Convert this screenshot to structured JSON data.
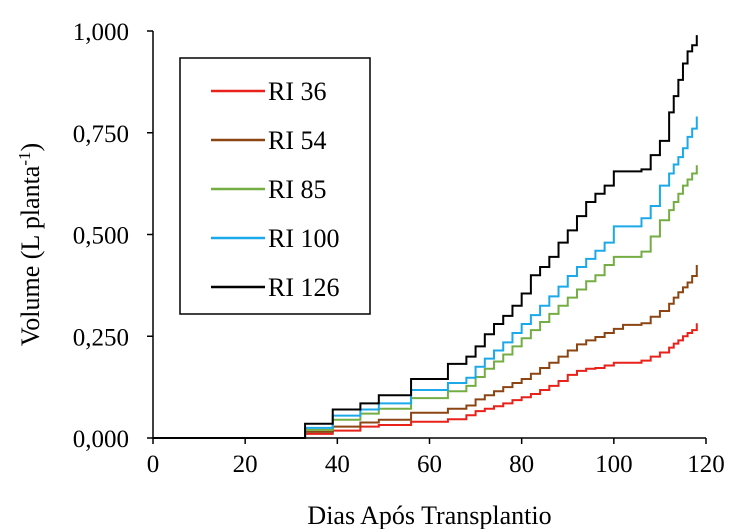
{
  "chart_data": {
    "type": "line",
    "step": true,
    "title": "",
    "xlabel": "Dias Após Transplantio",
    "ylabel": {
      "main": "Volume (L planta",
      "superscript": "-1",
      "close": ")"
    },
    "xlim": [
      0,
      120
    ],
    "ylim": [
      0,
      1.0
    ],
    "xticks": [
      0,
      20,
      40,
      60,
      80,
      100,
      120
    ],
    "xtick_labels": [
      "0",
      "20",
      "40",
      "60",
      "80",
      "100",
      "120"
    ],
    "yticks": [
      0,
      0.25,
      0.5,
      0.75,
      1.0
    ],
    "ytick_labels": [
      "0,000",
      "0,250",
      "0,500",
      "0,750",
      "1,000"
    ],
    "grid": false,
    "legend_position": "top-left",
    "series": [
      {
        "name": "RI 36",
        "color": "#e8211a",
        "points": [
          [
            0,
            0
          ],
          [
            33,
            0
          ],
          [
            33,
            0.01
          ],
          [
            39,
            0.01
          ],
          [
            39,
            0.018
          ],
          [
            45,
            0.018
          ],
          [
            45,
            0.028
          ],
          [
            49,
            0.028
          ],
          [
            49,
            0.032
          ],
          [
            56,
            0.032
          ],
          [
            56,
            0.04
          ],
          [
            60,
            0.04
          ],
          [
            64,
            0.046
          ],
          [
            68,
            0.056
          ],
          [
            70,
            0.066
          ],
          [
            72,
            0.072
          ],
          [
            74,
            0.078
          ],
          [
            76,
            0.085
          ],
          [
            78,
            0.093
          ],
          [
            80,
            0.1
          ],
          [
            82,
            0.108
          ],
          [
            84,
            0.118
          ],
          [
            86,
            0.128
          ],
          [
            88,
            0.14
          ],
          [
            90,
            0.155
          ],
          [
            92,
            0.165
          ],
          [
            94,
            0.17
          ],
          [
            96,
            0.172
          ],
          [
            98,
            0.178
          ],
          [
            100,
            0.185
          ],
          [
            102,
            0.185
          ],
          [
            106,
            0.19
          ],
          [
            108,
            0.2
          ],
          [
            110,
            0.21
          ],
          [
            112,
            0.222
          ],
          [
            113,
            0.232
          ],
          [
            114,
            0.24
          ],
          [
            115,
            0.25
          ],
          [
            116,
            0.258
          ],
          [
            117,
            0.265
          ],
          [
            118,
            0.282
          ]
        ]
      },
      {
        "name": "RI 54",
        "color": "#8b4513",
        "points": [
          [
            0,
            0
          ],
          [
            33,
            0
          ],
          [
            33,
            0.015
          ],
          [
            39,
            0.015
          ],
          [
            39,
            0.028
          ],
          [
            45,
            0.028
          ],
          [
            45,
            0.038
          ],
          [
            49,
            0.038
          ],
          [
            49,
            0.045
          ],
          [
            56,
            0.045
          ],
          [
            56,
            0.062
          ],
          [
            60,
            0.062
          ],
          [
            64,
            0.072
          ],
          [
            68,
            0.08
          ],
          [
            70,
            0.095
          ],
          [
            72,
            0.105
          ],
          [
            74,
            0.115
          ],
          [
            76,
            0.125
          ],
          [
            78,
            0.135
          ],
          [
            80,
            0.145
          ],
          [
            82,
            0.158
          ],
          [
            84,
            0.172
          ],
          [
            86,
            0.185
          ],
          [
            88,
            0.2
          ],
          [
            90,
            0.215
          ],
          [
            92,
            0.23
          ],
          [
            94,
            0.24
          ],
          [
            96,
            0.248
          ],
          [
            98,
            0.258
          ],
          [
            100,
            0.268
          ],
          [
            102,
            0.278
          ],
          [
            106,
            0.282
          ],
          [
            108,
            0.298
          ],
          [
            110,
            0.312
          ],
          [
            112,
            0.33
          ],
          [
            113,
            0.345
          ],
          [
            114,
            0.358
          ],
          [
            115,
            0.37
          ],
          [
            116,
            0.382
          ],
          [
            117,
            0.398
          ],
          [
            118,
            0.425
          ]
        ]
      },
      {
        "name": "RI 85",
        "color": "#74ad44",
        "points": [
          [
            0,
            0
          ],
          [
            33,
            0
          ],
          [
            33,
            0.02
          ],
          [
            39,
            0.02
          ],
          [
            39,
            0.045
          ],
          [
            45,
            0.045
          ],
          [
            45,
            0.06
          ],
          [
            49,
            0.06
          ],
          [
            49,
            0.072
          ],
          [
            56,
            0.072
          ],
          [
            56,
            0.098
          ],
          [
            60,
            0.098
          ],
          [
            64,
            0.115
          ],
          [
            68,
            0.128
          ],
          [
            70,
            0.15
          ],
          [
            72,
            0.17
          ],
          [
            74,
            0.188
          ],
          [
            76,
            0.205
          ],
          [
            78,
            0.225
          ],
          [
            80,
            0.245
          ],
          [
            82,
            0.265
          ],
          [
            84,
            0.285
          ],
          [
            86,
            0.305
          ],
          [
            88,
            0.325
          ],
          [
            90,
            0.345
          ],
          [
            92,
            0.365
          ],
          [
            94,
            0.385
          ],
          [
            96,
            0.4
          ],
          [
            98,
            0.425
          ],
          [
            100,
            0.445
          ],
          [
            102,
            0.445
          ],
          [
            106,
            0.458
          ],
          [
            108,
            0.495
          ],
          [
            110,
            0.535
          ],
          [
            112,
            0.56
          ],
          [
            113,
            0.58
          ],
          [
            114,
            0.6
          ],
          [
            115,
            0.62
          ],
          [
            116,
            0.635
          ],
          [
            117,
            0.65
          ],
          [
            118,
            0.67
          ]
        ]
      },
      {
        "name": "RI 100",
        "color": "#1ba9e9",
        "points": [
          [
            0,
            0
          ],
          [
            33,
            0
          ],
          [
            33,
            0.025
          ],
          [
            39,
            0.025
          ],
          [
            39,
            0.055
          ],
          [
            45,
            0.055
          ],
          [
            45,
            0.07
          ],
          [
            49,
            0.07
          ],
          [
            49,
            0.085
          ],
          [
            56,
            0.085
          ],
          [
            56,
            0.118
          ],
          [
            60,
            0.118
          ],
          [
            64,
            0.135
          ],
          [
            68,
            0.148
          ],
          [
            70,
            0.175
          ],
          [
            72,
            0.195
          ],
          [
            74,
            0.215
          ],
          [
            76,
            0.235
          ],
          [
            78,
            0.258
          ],
          [
            80,
            0.28
          ],
          [
            82,
            0.302
          ],
          [
            84,
            0.325
          ],
          [
            86,
            0.348
          ],
          [
            88,
            0.372
          ],
          [
            90,
            0.398
          ],
          [
            92,
            0.42
          ],
          [
            94,
            0.44
          ],
          [
            96,
            0.46
          ],
          [
            98,
            0.48
          ],
          [
            100,
            0.52
          ],
          [
            102,
            0.52
          ],
          [
            106,
            0.54
          ],
          [
            108,
            0.57
          ],
          [
            110,
            0.62
          ],
          [
            112,
            0.65
          ],
          [
            113,
            0.672
          ],
          [
            114,
            0.69
          ],
          [
            115,
            0.712
          ],
          [
            116,
            0.74
          ],
          [
            117,
            0.76
          ],
          [
            118,
            0.79
          ]
        ]
      },
      {
        "name": "RI 126",
        "color": "#000000",
        "points": [
          [
            0,
            0
          ],
          [
            33,
            0
          ],
          [
            33,
            0.035
          ],
          [
            39,
            0.035
          ],
          [
            39,
            0.07
          ],
          [
            45,
            0.07
          ],
          [
            45,
            0.085
          ],
          [
            49,
            0.085
          ],
          [
            49,
            0.105
          ],
          [
            56,
            0.105
          ],
          [
            56,
            0.145
          ],
          [
            60,
            0.145
          ],
          [
            64,
            0.182
          ],
          [
            68,
            0.2
          ],
          [
            70,
            0.225
          ],
          [
            72,
            0.255
          ],
          [
            74,
            0.28
          ],
          [
            76,
            0.3
          ],
          [
            78,
            0.325
          ],
          [
            80,
            0.355
          ],
          [
            82,
            0.4
          ],
          [
            84,
            0.42
          ],
          [
            86,
            0.445
          ],
          [
            88,
            0.48
          ],
          [
            90,
            0.51
          ],
          [
            92,
            0.545
          ],
          [
            94,
            0.58
          ],
          [
            96,
            0.6
          ],
          [
            98,
            0.62
          ],
          [
            100,
            0.655
          ],
          [
            102,
            0.655
          ],
          [
            106,
            0.66
          ],
          [
            108,
            0.695
          ],
          [
            110,
            0.73
          ],
          [
            112,
            0.8
          ],
          [
            113,
            0.84
          ],
          [
            114,
            0.88
          ],
          [
            115,
            0.92
          ],
          [
            116,
            0.95
          ],
          [
            117,
            0.965
          ],
          [
            118,
            0.99
          ]
        ]
      }
    ]
  }
}
